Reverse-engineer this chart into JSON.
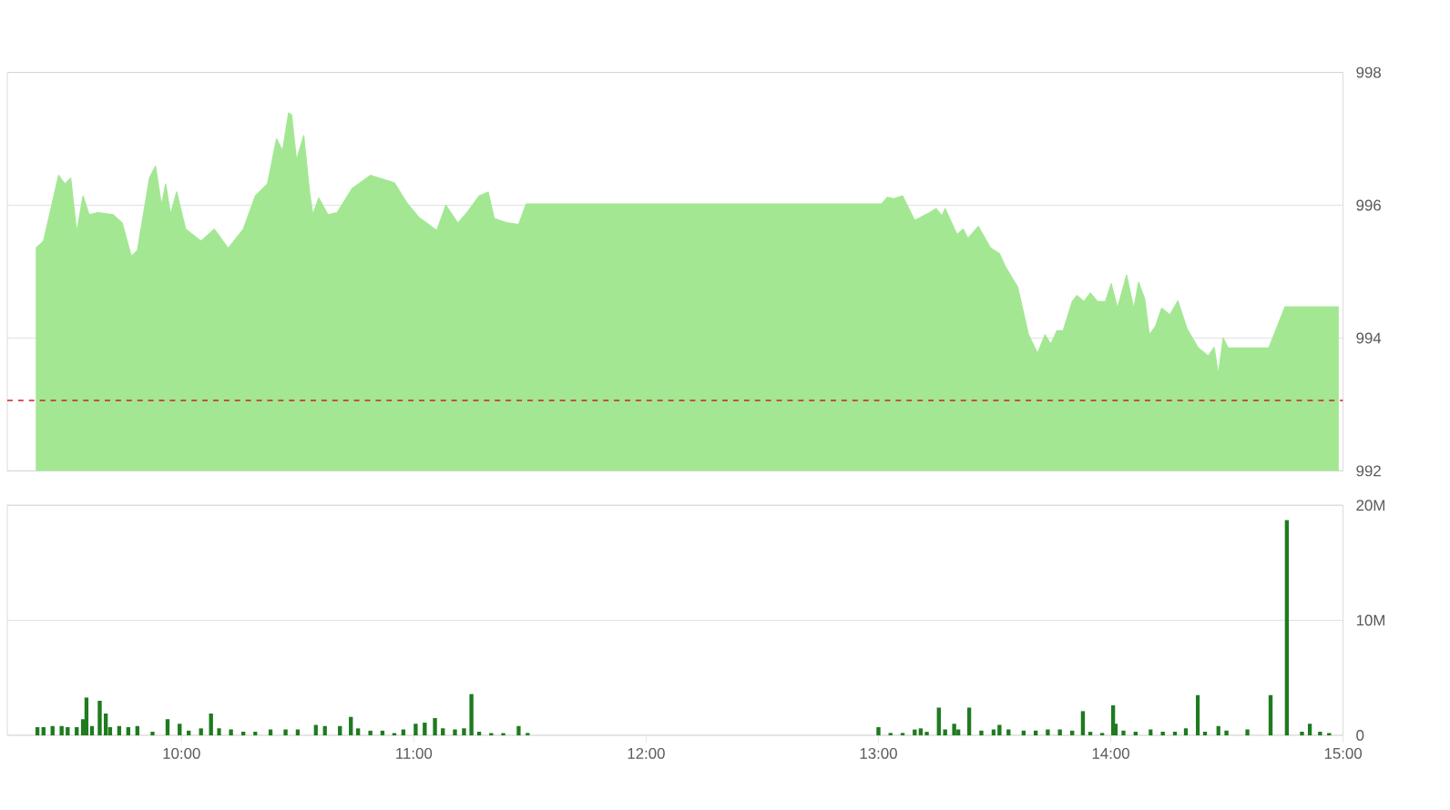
{
  "chart_data": [
    {
      "type": "area",
      "color": "#a3e793",
      "xlim": [
        9.25,
        15
      ],
      "ylim": [
        992,
        998
      ],
      "yticks": [
        992,
        994,
        996,
        998
      ],
      "grid": "y",
      "tick_labels": "y",
      "ref_lines": [
        {
          "axis": "y",
          "value": 993.06,
          "color": "#cc2222",
          "line_style": "dashed"
        }
      ],
      "x": [
        9.375,
        9.406,
        9.471,
        9.498,
        9.523,
        9.549,
        9.576,
        9.602,
        9.641,
        9.705,
        9.745,
        9.784,
        9.81,
        9.862,
        9.888,
        9.914,
        9.932,
        9.953,
        9.979,
        10.018,
        10.084,
        10.141,
        10.201,
        10.266,
        10.318,
        10.37,
        10.409,
        10.435,
        10.461,
        10.474,
        10.495,
        10.526,
        10.552,
        10.565,
        10.591,
        10.63,
        10.67,
        10.734,
        10.813,
        10.916,
        10.969,
        11.021,
        11.099,
        11.138,
        11.19,
        11.229,
        11.281,
        11.32,
        11.346,
        11.398,
        11.451,
        11.484,
        13.013,
        13.039,
        13.065,
        13.104,
        13.156,
        13.221,
        13.248,
        13.273,
        13.287,
        13.338,
        13.365,
        13.385,
        13.43,
        13.482,
        13.521,
        13.547,
        13.599,
        13.646,
        13.685,
        13.717,
        13.742,
        13.768,
        13.795,
        13.834,
        13.854,
        13.885,
        13.912,
        13.943,
        13.977,
        14.002,
        14.029,
        14.068,
        14.099,
        14.12,
        14.146,
        14.166,
        14.193,
        14.219,
        14.255,
        14.289,
        14.328,
        14.375,
        14.42,
        14.445,
        14.463,
        14.484,
        14.505,
        14.68,
        14.75,
        14.979
      ],
      "values": [
        995.36,
        995.46,
        996.45,
        996.32,
        996.41,
        995.59,
        996.14,
        995.86,
        995.89,
        995.86,
        995.73,
        995.23,
        995.32,
        996.41,
        996.59,
        996.0,
        996.32,
        995.86,
        996.2,
        995.64,
        995.46,
        995.64,
        995.35,
        995.64,
        996.14,
        996.32,
        997.0,
        996.82,
        997.39,
        997.36,
        996.68,
        997.05,
        996.18,
        995.86,
        996.11,
        995.86,
        995.89,
        996.25,
        996.45,
        996.34,
        996.04,
        995.82,
        995.62,
        996.0,
        995.73,
        995.89,
        996.14,
        996.2,
        995.8,
        995.74,
        995.71,
        996.02,
        996.02,
        996.12,
        996.1,
        996.14,
        995.77,
        995.89,
        995.95,
        995.84,
        995.95,
        995.56,
        995.64,
        995.5,
        995.68,
        995.36,
        995.27,
        995.07,
        994.77,
        994.05,
        993.77,
        994.05,
        993.91,
        994.11,
        994.11,
        994.55,
        994.64,
        994.55,
        994.68,
        994.55,
        994.55,
        994.82,
        994.45,
        994.95,
        994.44,
        994.84,
        994.59,
        994.05,
        994.18,
        994.45,
        994.35,
        994.56,
        994.14,
        993.86,
        993.73,
        993.86,
        993.45,
        994.0,
        993.85,
        993.85,
        994.47,
        994.47
      ]
    },
    {
      "type": "bar",
      "color": "#1e7b1e",
      "xlim": [
        9.25,
        15
      ],
      "ylim": [
        0,
        20
      ],
      "yticks": [
        0,
        {
          "value": 10,
          "label": "10M"
        },
        {
          "value": 20,
          "label": "20M"
        }
      ],
      "grid": "y",
      "xticks": [
        {
          "value": 10,
          "label": "10:00"
        },
        {
          "value": 11,
          "label": "11:00"
        },
        {
          "value": 12,
          "label": "12:00"
        },
        {
          "value": 13,
          "label": "13:00"
        },
        {
          "value": 14,
          "label": "14:00"
        },
        {
          "value": 15,
          "label": "15:00"
        }
      ],
      "x": [
        9.38,
        9.406,
        9.445,
        9.484,
        9.51,
        9.549,
        9.576,
        9.591,
        9.615,
        9.648,
        9.674,
        9.693,
        9.732,
        9.771,
        9.81,
        9.875,
        9.94,
        9.992,
        10.031,
        10.084,
        10.127,
        10.162,
        10.213,
        10.266,
        10.318,
        10.383,
        10.448,
        10.5,
        10.578,
        10.617,
        10.682,
        10.729,
        10.76,
        10.813,
        10.865,
        10.916,
        10.955,
        11.008,
        11.047,
        11.091,
        11.125,
        11.177,
        11.216,
        11.248,
        11.281,
        11.333,
        11.385,
        11.451,
        11.49,
        13.0,
        13.052,
        13.104,
        13.156,
        13.182,
        13.208,
        13.26,
        13.287,
        13.326,
        13.344,
        13.391,
        13.443,
        13.495,
        13.521,
        13.56,
        13.625,
        13.677,
        13.729,
        13.781,
        13.834,
        13.88,
        13.912,
        13.963,
        14.01,
        14.021,
        14.055,
        14.107,
        14.172,
        14.224,
        14.276,
        14.323,
        14.375,
        14.406,
        14.463,
        14.498,
        14.588,
        14.688,
        14.758,
        14.823,
        14.857,
        14.901,
        14.94
      ],
      "values": [
        0.7,
        0.7,
        0.8,
        0.8,
        0.7,
        0.7,
        1.4,
        3.3,
        0.8,
        3.0,
        1.9,
        0.7,
        0.8,
        0.7,
        0.8,
        0.3,
        1.4,
        1.0,
        0.4,
        0.6,
        1.9,
        0.6,
        0.5,
        0.3,
        0.3,
        0.5,
        0.5,
        0.5,
        0.9,
        0.8,
        0.8,
        1.6,
        0.6,
        0.4,
        0.4,
        0.2,
        0.5,
        1.0,
        1.1,
        1.5,
        0.6,
        0.5,
        0.6,
        3.6,
        0.3,
        0.2,
        0.2,
        0.8,
        0.2,
        0.7,
        0.2,
        0.2,
        0.5,
        0.6,
        0.3,
        2.4,
        0.5,
        1.0,
        0.5,
        2.4,
        0.4,
        0.5,
        0.9,
        0.5,
        0.4,
        0.4,
        0.5,
        0.5,
        0.4,
        2.1,
        0.3,
        0.2,
        2.6,
        1.0,
        0.4,
        0.3,
        0.5,
        0.3,
        0.3,
        0.6,
        3.5,
        0.3,
        0.8,
        0.4,
        0.5,
        3.5,
        18.7,
        0.3,
        1.0,
        0.3,
        0.2
      ]
    }
  ]
}
